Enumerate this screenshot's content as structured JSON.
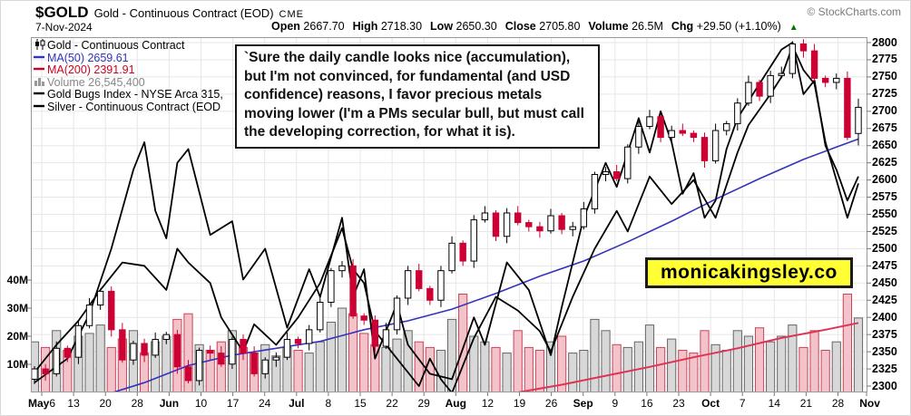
{
  "header": {
    "symbol": "$GOLD",
    "name": "Gold - Continuous Contract (EOD)",
    "exchange": "CME",
    "copyright": "© StockCharts.com",
    "date": "7-Nov-2024",
    "quote": [
      {
        "label": "Open",
        "value": "2667.70"
      },
      {
        "label": "High",
        "value": "2718.30"
      },
      {
        "label": "Low",
        "value": "2650.30"
      },
      {
        "label": "Close",
        "value": "2705.80"
      },
      {
        "label": "Volume",
        "value": "26.5M"
      },
      {
        "label": "Chg",
        "value": "+29.50 (+1.10%)"
      }
    ],
    "chg_arrow": "▲",
    "chg_direction": "up"
  },
  "legend": {
    "rows": [
      {
        "icon": "candles",
        "color": "#000000",
        "text": "Gold - Continuous Contract"
      },
      {
        "icon": "dash",
        "color": "#3333bb",
        "text": "MA(50) 2659.61"
      },
      {
        "icon": "dash",
        "color": "#cc0022",
        "text": "MA(200) 2391.91"
      },
      {
        "icon": "bars",
        "color": "#888888",
        "text": "Volume 26,545,400"
      },
      {
        "icon": "dash",
        "color": "#000000",
        "text": "Gold Bugs Index - NYSE Arca 315,"
      },
      {
        "icon": "dash",
        "color": "#000000",
        "text": "Silver - Continuous Contract (EOD"
      }
    ]
  },
  "annotation": {
    "text": "`Sure the daily candle looks nice (accumulation), but I'm not convinced, for fundamental (and USD confidence) reasons, I favor precious metals moving lower (I'm a PMs secular bull, but must call the developing correction, for what it is)."
  },
  "watermark": {
    "text": "monicakingsley.co",
    "bg": "#ffff33"
  },
  "axes": {
    "price_ticks": [
      2800,
      2775,
      2750,
      2725,
      2700,
      2675,
      2650,
      2625,
      2600,
      2575,
      2550,
      2525,
      2500,
      2475,
      2450,
      2425,
      2400,
      2375,
      2350,
      2325,
      2300
    ],
    "volume_ticks": [
      {
        "t": "40M",
        "v": 40
      },
      {
        "t": "30M",
        "v": 30
      },
      {
        "t": "20M",
        "v": 20
      },
      {
        "t": "10M",
        "v": 10
      }
    ],
    "date_ticks": [
      {
        "b": "May",
        "r": "6"
      },
      {
        "r": "13"
      },
      {
        "r": "20"
      },
      {
        "r": "28"
      },
      {
        "b": "Jun"
      },
      {
        "r": "10"
      },
      {
        "r": "17"
      },
      {
        "r": "24"
      },
      {
        "b": "Jul"
      },
      {
        "r": "8"
      },
      {
        "r": "15"
      },
      {
        "r": "22"
      },
      {
        "r": "29"
      },
      {
        "b": "Aug"
      },
      {
        "r": "12"
      },
      {
        "r": "19"
      },
      {
        "r": "26"
      },
      {
        "b": "Sep"
      },
      {
        "r": "9"
      },
      {
        "r": "16"
      },
      {
        "r": "23"
      },
      {
        "b": "Oct"
      },
      {
        "r": "7"
      },
      {
        "r": "14"
      },
      {
        "r": "21"
      },
      {
        "r": "28"
      },
      {
        "b": "Nov"
      }
    ]
  },
  "colors": {
    "candle_up_fill": "#ffffff",
    "candle_up_stroke": "#000000",
    "candle_down": "#cc0033",
    "ma50": "#3333bb",
    "ma200": "#dd3355",
    "overlay_line": "#000000",
    "vol_up_fill": "#d8d8d8",
    "vol_up_stroke": "#666666",
    "vol_down_fill": "#f3c3cb",
    "vol_down_stroke": "#cc4455",
    "grid": "#e7e7e7",
    "plot_border": "#999999",
    "chg_green": "#007700",
    "watermark_bg": "#ffff33"
  },
  "chart_data": {
    "type": "candlestick+line+volume",
    "title": "$GOLD Gold - Continuous Contract (EOD) CME",
    "date_of_quote": "7-Nov-2024",
    "ylim": [
      2300,
      2800
    ],
    "y_grid_step": 25,
    "volume_axis_lim_millions": [
      0,
      45
    ],
    "legend_position": "top-left",
    "grid": true,
    "first_open": 2310,
    "last_ohlc": {
      "open": 2667.7,
      "high": 2718.3,
      "low": 2650.3,
      "close": 2705.8,
      "volume_millions": 26.5
    },
    "series": [
      {
        "name": "Gold - Continuous Contract (EOD) CME",
        "type": "candlestick",
        "note": "estimated daily closes May 6 - Nov 7 2024, read off chart",
        "closes": [
          2325,
          2318,
          2355,
          2342,
          2388,
          2418,
          2438,
          2382,
          2338,
          2362,
          2345,
          2368,
          2375,
          2328,
          2308,
          2352,
          2348,
          2332,
          2368,
          2348,
          2318,
          2338,
          2342,
          2368,
          2362,
          2382,
          2422,
          2468,
          2475,
          2402,
          2396,
          2358,
          2382,
          2428,
          2468,
          2442,
          2425,
          2468,
          2508,
          2482,
          2542,
          2552,
          2518,
          2552,
          2538,
          2532,
          2526,
          2548,
          2528,
          2532,
          2558,
          2608,
          2612,
          2602,
          2648,
          2678,
          2692,
          2662,
          2672,
          2668,
          2662,
          2628,
          2672,
          2682,
          2712,
          2742,
          2722,
          2752,
          2755,
          2798,
          2788,
          2748,
          2742,
          2748,
          2662,
          2705.8
        ]
      },
      {
        "name": "MA(50)",
        "type": "line",
        "current_value": 2659.61,
        "points": [
          [
            7,
            2290
          ],
          [
            10,
            2305
          ],
          [
            14,
            2330
          ],
          [
            18,
            2345
          ],
          [
            22,
            2355
          ],
          [
            26,
            2365
          ],
          [
            30,
            2382
          ],
          [
            34,
            2395
          ],
          [
            38,
            2412
          ],
          [
            42,
            2435
          ],
          [
            46,
            2460
          ],
          [
            50,
            2482
          ],
          [
            54,
            2510
          ],
          [
            58,
            2540
          ],
          [
            62,
            2572
          ],
          [
            66,
            2602
          ],
          [
            70,
            2630
          ],
          [
            73,
            2648
          ],
          [
            75,
            2659.61
          ]
        ]
      },
      {
        "name": "MA(200)",
        "type": "line",
        "current_value": 2391.91,
        "points": [
          [
            43,
            2288
          ],
          [
            48,
            2302
          ],
          [
            52,
            2315
          ],
          [
            56,
            2328
          ],
          [
            60,
            2342
          ],
          [
            64,
            2355
          ],
          [
            68,
            2370
          ],
          [
            72,
            2382
          ],
          [
            75,
            2391.91
          ]
        ]
      },
      {
        "name": "Gold Bugs Index - NYSE Arca (overlay, scaled to price axis)",
        "type": "line",
        "points": [
          [
            0,
            2305
          ],
          [
            3,
            2340
          ],
          [
            5,
            2405
          ],
          [
            7,
            2500
          ],
          [
            9,
            2615
          ],
          [
            10,
            2655
          ],
          [
            11,
            2555
          ],
          [
            12,
            2515
          ],
          [
            13,
            2625
          ],
          [
            14,
            2645
          ],
          [
            16,
            2520
          ],
          [
            18,
            2540
          ],
          [
            19,
            2455
          ],
          [
            21,
            2500
          ],
          [
            23,
            2385
          ],
          [
            25,
            2470
          ],
          [
            26,
            2430
          ],
          [
            28,
            2545
          ],
          [
            29,
            2430
          ],
          [
            30,
            2470
          ],
          [
            31,
            2340
          ],
          [
            33,
            2420
          ],
          [
            34,
            2360
          ],
          [
            36,
            2318
          ],
          [
            38,
            2310
          ],
          [
            40,
            2400
          ],
          [
            41,
            2360
          ],
          [
            43,
            2480
          ],
          [
            45,
            2440
          ],
          [
            47,
            2345
          ],
          [
            48,
            2415
          ],
          [
            50,
            2545
          ],
          [
            52,
            2625
          ],
          [
            53,
            2590
          ],
          [
            55,
            2690
          ],
          [
            56,
            2640
          ],
          [
            57,
            2700
          ],
          [
            58,
            2655
          ],
          [
            59,
            2580
          ],
          [
            60,
            2610
          ],
          [
            61,
            2545
          ],
          [
            62,
            2570
          ],
          [
            63,
            2645
          ],
          [
            64,
            2690
          ],
          [
            66,
            2740
          ],
          [
            68,
            2790
          ],
          [
            69,
            2800
          ],
          [
            70,
            2725
          ],
          [
            71,
            2745
          ],
          [
            72,
            2650
          ],
          [
            73,
            2615
          ],
          [
            74,
            2570
          ],
          [
            75,
            2605
          ]
        ]
      },
      {
        "name": "Silver - Continuous Contract (EOD) (overlay, scaled to price axis)",
        "type": "line",
        "points": [
          [
            0,
            2320
          ],
          [
            2,
            2360
          ],
          [
            4,
            2395
          ],
          [
            6,
            2440
          ],
          [
            8,
            2480
          ],
          [
            10,
            2475
          ],
          [
            12,
            2440
          ],
          [
            13,
            2500
          ],
          [
            14,
            2480
          ],
          [
            16,
            2450
          ],
          [
            17,
            2400
          ],
          [
            19,
            2350
          ],
          [
            20,
            2390
          ],
          [
            22,
            2360
          ],
          [
            24,
            2400
          ],
          [
            26,
            2450
          ],
          [
            27,
            2490
          ],
          [
            28,
            2530
          ],
          [
            29,
            2470
          ],
          [
            30,
            2450
          ],
          [
            31,
            2380
          ],
          [
            33,
            2340
          ],
          [
            35,
            2300
          ],
          [
            36,
            2340
          ],
          [
            37,
            2310
          ],
          [
            38,
            2290
          ],
          [
            40,
            2370
          ],
          [
            42,
            2430
          ],
          [
            44,
            2410
          ],
          [
            46,
            2380
          ],
          [
            47,
            2350
          ],
          [
            49,
            2430
          ],
          [
            51,
            2500
          ],
          [
            53,
            2555
          ],
          [
            54,
            2525
          ],
          [
            56,
            2605
          ],
          [
            58,
            2565
          ],
          [
            60,
            2600
          ],
          [
            62,
            2545
          ],
          [
            64,
            2640
          ],
          [
            65,
            2680
          ],
          [
            67,
            2725
          ],
          [
            68,
            2750
          ],
          [
            69,
            2795
          ],
          [
            70,
            2760
          ],
          [
            71,
            2740
          ],
          [
            72,
            2655
          ],
          [
            73,
            2600
          ],
          [
            74,
            2545
          ],
          [
            75,
            2595
          ]
        ]
      },
      {
        "name": "Volume (millions)",
        "type": "bars",
        "values": [
          18,
          16,
          22,
          15,
          20,
          21,
          24,
          16,
          19,
          22,
          14,
          18,
          20,
          26,
          28,
          17,
          15,
          18,
          22,
          16,
          14,
          17,
          13,
          16,
          15,
          14,
          18,
          25,
          30,
          28,
          21,
          17,
          16,
          19,
          22,
          18,
          16,
          15,
          26,
          35,
          20,
          18,
          16,
          14,
          22,
          16,
          15,
          18,
          20,
          14,
          15,
          26,
          22,
          17,
          16,
          18,
          24,
          16,
          19,
          15,
          14,
          22,
          17,
          15,
          22,
          20,
          23,
          18,
          20,
          24,
          16,
          22,
          15,
          18,
          35,
          26.5
        ]
      }
    ]
  }
}
